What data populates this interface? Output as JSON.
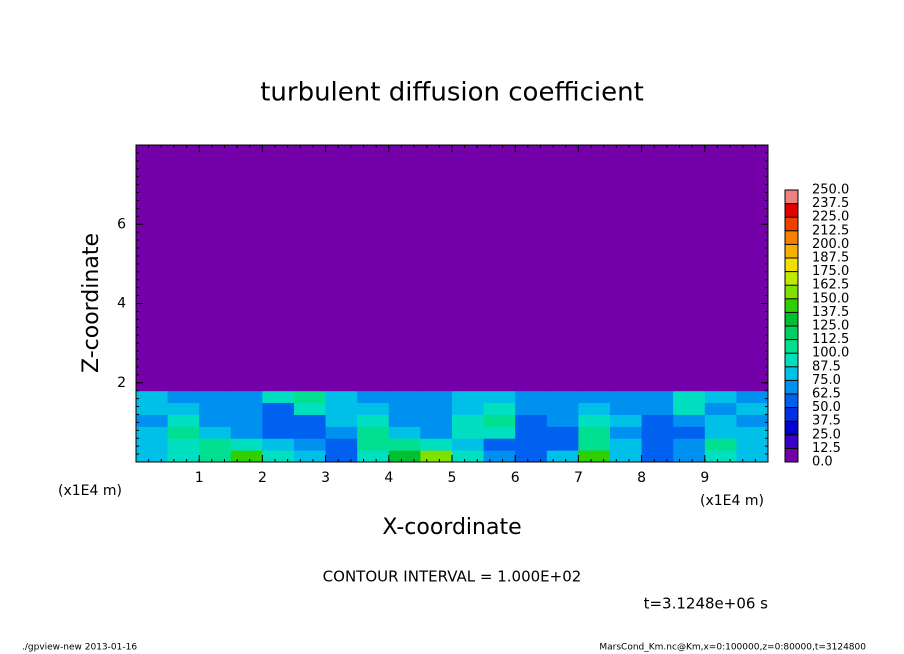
{
  "chart_data": {
    "type": "heatmap",
    "title": "turbulent diffusion coefficient",
    "xlabel": "X-coordinate",
    "ylabel": "Z-coordinate",
    "x_unit": "(x1E4 m)",
    "contour_interval": "CONTOUR INTERVAL = 1.000E+02",
    "time": "t=3.1248e+06 s",
    "footer_left": "./gpview-new  2013-01-16",
    "footer_right": "MarsCond_Km.nc@Km,x=0:100000,z=0:80000,t=3124800",
    "xlim": [
      0,
      10
    ],
    "ylim": [
      0,
      8
    ],
    "xticks": [
      1,
      2,
      3,
      4,
      5,
      6,
      7,
      8,
      9
    ],
    "yticks": [
      2,
      4,
      6
    ],
    "xbins": [
      0,
      0.5,
      1,
      1.5,
      2,
      2.5,
      3,
      3.5,
      4,
      4.5,
      5,
      5.5,
      6,
      6.5,
      7,
      7.5,
      8,
      8.5,
      9,
      9.5,
      10
    ],
    "ybins": [
      0,
      0.3,
      0.6,
      0.9,
      1.2,
      1.5,
      1.8,
      8
    ],
    "values": [
      [
        80,
        90,
        105,
        140,
        95,
        85,
        60,
        90,
        125,
        150,
        95,
        70,
        55,
        75,
        140,
        80,
        60,
        70,
        90,
        85
      ],
      [
        75,
        95,
        110,
        95,
        80,
        70,
        55,
        110,
        100,
        95,
        85,
        60,
        50,
        60,
        110,
        75,
        55,
        65,
        100,
        80
      ],
      [
        85,
        100,
        75,
        70,
        60,
        60,
        65,
        100,
        80,
        70,
        90,
        95,
        50,
        60,
        100,
        70,
        55,
        60,
        85,
        75
      ],
      [
        70,
        90,
        70,
        65,
        55,
        60,
        75,
        90,
        70,
        65,
        95,
        105,
        60,
        70,
        90,
        75,
        60,
        70,
        80,
        70
      ],
      [
        80,
        75,
        70,
        70,
        60,
        95,
        80,
        75,
        65,
        70,
        80,
        90,
        65,
        70,
        75,
        70,
        65,
        95,
        70,
        80
      ],
      [
        75,
        70,
        70,
        65,
        90,
        100,
        75,
        70,
        70,
        70,
        75,
        85,
        70,
        65,
        70,
        70,
        70,
        90,
        75,
        70
      ],
      [
        0,
        0,
        0,
        0,
        0,
        0,
        0,
        0,
        0,
        0,
        0,
        0,
        0,
        0,
        0,
        0,
        0,
        0,
        0,
        0
      ]
    ],
    "levels": [
      {
        "value": 0,
        "label": "0.0"
      },
      {
        "value": 12.5,
        "label": "12.5"
      },
      {
        "value": 25,
        "label": "25.0"
      },
      {
        "value": 37.5,
        "label": "37.5"
      },
      {
        "value": 50,
        "label": "50.0"
      },
      {
        "value": 62.5,
        "label": "62.5"
      },
      {
        "value": 75,
        "label": "75.0"
      },
      {
        "value": 87.5,
        "label": "87.5"
      },
      {
        "value": 100,
        "label": "100.0"
      },
      {
        "value": 112.5,
        "label": "112.5"
      },
      {
        "value": 125,
        "label": "125.0"
      },
      {
        "value": 137.5,
        "label": "137.5"
      },
      {
        "value": 150,
        "label": "150.0"
      },
      {
        "value": 162.5,
        "label": "162.5"
      },
      {
        "value": 175,
        "label": "175.0"
      },
      {
        "value": 187.5,
        "label": "187.5"
      },
      {
        "value": 200,
        "label": "200.0"
      },
      {
        "value": 212.5,
        "label": "212.5"
      },
      {
        "value": 225,
        "label": "225.0"
      },
      {
        "value": 237.5,
        "label": "237.5"
      },
      {
        "value": 250,
        "label": "250.0"
      }
    ],
    "colors": [
      "#7300a8",
      "#3a00c8",
      "#0000d0",
      "#0030e8",
      "#0060f0",
      "#0090f0",
      "#00c0e8",
      "#00e0c0",
      "#00e090",
      "#00d060",
      "#00c030",
      "#30d000",
      "#80e000",
      "#c0e800",
      "#f0e000",
      "#f8b000",
      "#f88000",
      "#f04000",
      "#e00000",
      "#f08080"
    ]
  }
}
